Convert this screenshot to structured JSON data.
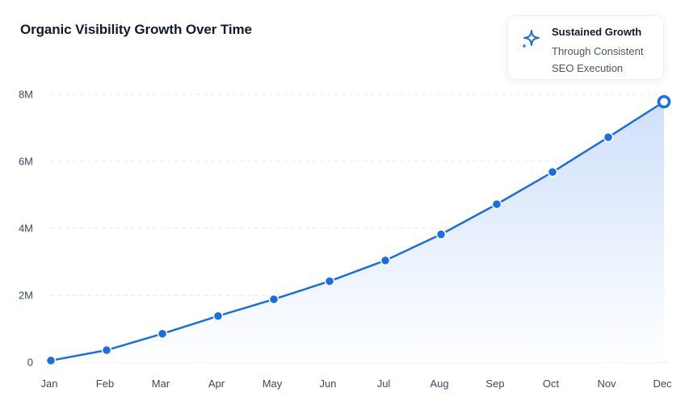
{
  "title": "Organic Visibility Growth Over Time",
  "callout": {
    "icon": "sparkle-icon",
    "heading": "Sustained Growth",
    "subtext": "Through Consistent SEO Execution"
  },
  "colors": {
    "line": "#1a6fe0",
    "point": "#1a6fe0",
    "fill_top": "#cfe0fb",
    "fill_bottom": "#ffffff",
    "grid": "#e3e7ee",
    "accent": "#1a6fe0"
  },
  "chart_data": {
    "type": "area",
    "title": "Organic Visibility Growth Over Time",
    "xlabel": "",
    "ylabel": "",
    "categories": [
      "Jan",
      "Feb",
      "Mar",
      "Apr",
      "May",
      "Jun",
      "Jul",
      "Aug",
      "Sep",
      "Oct",
      "Nov",
      "Dec"
    ],
    "series": [
      {
        "values": [
          0.05,
          0.36,
          0.85,
          1.38,
          1.88,
          2.42,
          3.04,
          3.82,
          4.72,
          5.68,
          6.72,
          7.78
        ]
      }
    ],
    "y_unit": "M",
    "ylim": [
      0,
      8
    ],
    "yticks": [
      0,
      2,
      4,
      6,
      8
    ],
    "ytick_labels": [
      "0",
      "2M",
      "4M",
      "6M",
      "8M"
    ],
    "grid": "horizontal dashed",
    "highlight_last_point": true,
    "legend": "none"
  }
}
